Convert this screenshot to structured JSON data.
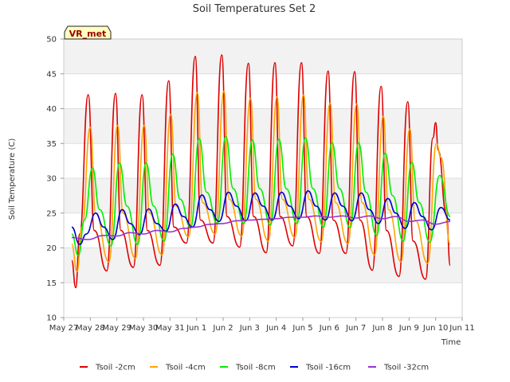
{
  "chart_data": {
    "type": "line",
    "title": "Soil Temperatures Set 2",
    "xlabel": "Time",
    "ylabel": "Soil Temperature (C)",
    "ylim": [
      10,
      50
    ],
    "yticks": [
      10,
      15,
      20,
      25,
      30,
      35,
      40,
      45,
      50
    ],
    "xlim": [
      0,
      15
    ],
    "xticks": [
      {
        "x": 0,
        "label": "May 27"
      },
      {
        "x": 1,
        "label": "May 28"
      },
      {
        "x": 2,
        "label": "May 29"
      },
      {
        "x": 3,
        "label": "May 30"
      },
      {
        "x": 4,
        "label": "May 31"
      },
      {
        "x": 5,
        "label": "Jun 1"
      },
      {
        "x": 6,
        "label": "Jun 2"
      },
      {
        "x": 7,
        "label": "Jun 3"
      },
      {
        "x": 8,
        "label": "Jun 4"
      },
      {
        "x": 9,
        "label": "Jun 5"
      },
      {
        "x": 10,
        "label": "Jun 6"
      },
      {
        "x": 11,
        "label": "Jun 7"
      },
      {
        "x": 12,
        "label": "Jun 8"
      },
      {
        "x": 13,
        "label": "Jun 9"
      },
      {
        "x": 14,
        "label": "Jun 10"
      },
      {
        "x": 15,
        "label": "Jun 11"
      }
    ],
    "grid": "horizontal bands",
    "legend": "bottom",
    "badge": "VR_met",
    "series": [
      {
        "name": "Tsoil -2cm",
        "color": "#dd0000",
        "x": [
          0.3,
          0.45,
          0.6,
          0.92,
          1.15,
          1.62,
          1.95,
          2.15,
          2.62,
          2.95,
          3.15,
          3.62,
          3.95,
          4.15,
          4.62,
          4.95,
          5.15,
          5.62,
          5.95,
          6.15,
          6.62,
          6.95,
          7.15,
          7.62,
          7.95,
          8.15,
          8.62,
          8.95,
          9.15,
          9.62,
          9.95,
          10.15,
          10.62,
          10.95,
          11.15,
          11.62,
          11.95,
          12.15,
          12.62,
          12.95,
          13.15,
          13.62,
          13.9,
          14.0,
          14.1,
          14.4,
          14.55
        ],
        "y": [
          18.2,
          14.3,
          22.0,
          42.0,
          22.5,
          16.7,
          42.2,
          22.5,
          17.2,
          42.0,
          22.5,
          17.5,
          44.0,
          23.0,
          20.7,
          47.5,
          24.0,
          20.7,
          47.7,
          24.5,
          20.1,
          46.5,
          24.5,
          19.3,
          46.6,
          24.5,
          20.3,
          46.6,
          24.5,
          19.2,
          45.4,
          24.0,
          19.2,
          45.3,
          24.0,
          16.8,
          43.2,
          22.5,
          15.9,
          41.0,
          21.0,
          15.5,
          35.8,
          38.0,
          34.0,
          25.0,
          17.5
        ]
      },
      {
        "name": "Tsoil -4cm",
        "color": "#ffa500",
        "x": [
          0.3,
          0.5,
          0.68,
          1.0,
          1.2,
          1.7,
          2.03,
          2.23,
          2.7,
          3.03,
          3.23,
          3.7,
          4.03,
          4.23,
          4.7,
          5.03,
          5.23,
          5.7,
          6.03,
          6.23,
          6.7,
          7.03,
          7.23,
          7.7,
          8.03,
          8.23,
          8.7,
          9.03,
          9.23,
          9.7,
          10.03,
          10.23,
          10.7,
          11.03,
          11.23,
          11.7,
          12.03,
          12.23,
          12.7,
          13.03,
          13.23,
          13.7,
          14.03,
          14.2,
          14.55
        ],
        "y": [
          20.5,
          16.6,
          23.0,
          37.3,
          25.0,
          18.0,
          37.6,
          25.0,
          18.5,
          37.6,
          25.0,
          19.0,
          39.2,
          26.0,
          21.6,
          42.3,
          26.5,
          22.0,
          42.5,
          27.0,
          21.7,
          41.5,
          27.0,
          21.0,
          41.7,
          27.0,
          21.5,
          42.0,
          27.0,
          20.9,
          40.8,
          26.5,
          20.6,
          40.7,
          26.5,
          19.0,
          38.9,
          25.5,
          18.0,
          37.1,
          24.0,
          17.8,
          35.0,
          33.0,
          20.5
        ]
      },
      {
        "name": "Tsoil -8cm",
        "color": "#00ee00",
        "x": [
          0.3,
          0.55,
          0.78,
          1.08,
          1.35,
          1.78,
          2.1,
          2.38,
          2.78,
          3.1,
          3.38,
          3.78,
          4.1,
          4.38,
          4.78,
          5.1,
          5.38,
          5.78,
          6.1,
          6.38,
          6.78,
          7.1,
          7.38,
          7.78,
          8.1,
          8.38,
          8.78,
          9.1,
          9.38,
          9.78,
          10.1,
          10.38,
          10.78,
          11.1,
          11.38,
          11.78,
          12.1,
          12.38,
          12.78,
          13.1,
          13.38,
          13.78,
          14.15,
          14.55
        ],
        "y": [
          22.0,
          18.9,
          24.0,
          31.5,
          25.5,
          20.3,
          32.2,
          26.0,
          20.5,
          32.2,
          26.0,
          21.0,
          33.5,
          27.0,
          22.9,
          35.7,
          28.0,
          23.5,
          36.0,
          28.5,
          23.5,
          35.5,
          28.5,
          23.3,
          35.6,
          28.5,
          23.5,
          35.8,
          28.5,
          23.0,
          35.1,
          28.5,
          22.9,
          35.1,
          28.0,
          21.8,
          33.6,
          27.5,
          21.0,
          32.3,
          26.5,
          20.8,
          30.4,
          24.5
        ]
      },
      {
        "name": "Tsoil -16cm",
        "color": "#0000cc",
        "x": [
          0.3,
          0.6,
          0.85,
          1.2,
          1.5,
          1.85,
          2.2,
          2.5,
          2.85,
          3.2,
          3.5,
          3.85,
          4.2,
          4.5,
          4.85,
          5.2,
          5.5,
          5.85,
          6.2,
          6.5,
          6.85,
          7.2,
          7.5,
          7.85,
          8.2,
          8.5,
          8.85,
          9.2,
          9.5,
          9.85,
          10.2,
          10.5,
          10.85,
          11.2,
          11.5,
          11.85,
          12.2,
          12.5,
          12.85,
          13.2,
          13.5,
          13.85,
          14.2,
          14.55
        ],
        "y": [
          23.0,
          20.5,
          22.0,
          25.0,
          23.0,
          21.2,
          25.5,
          23.5,
          21.9,
          25.6,
          23.5,
          22.4,
          26.3,
          24.5,
          23.0,
          27.6,
          25.5,
          23.8,
          28.0,
          26.0,
          23.9,
          27.9,
          26.0,
          24.0,
          28.0,
          26.0,
          24.2,
          28.2,
          26.0,
          24.0,
          27.9,
          26.0,
          23.9,
          27.9,
          25.5,
          23.5,
          27.1,
          25.0,
          22.8,
          26.5,
          24.5,
          22.6,
          25.8,
          24.0
        ]
      },
      {
        "name": "Tsoil -32cm",
        "color": "#9933cc",
        "x": [
          0.3,
          0.9,
          1.5,
          2.0,
          2.5,
          3.0,
          3.5,
          4.0,
          4.5,
          5.0,
          5.5,
          6.0,
          6.5,
          7.0,
          7.5,
          8.0,
          8.5,
          9.0,
          9.5,
          10.0,
          10.5,
          11.0,
          11.5,
          12.0,
          12.5,
          13.0,
          13.5,
          14.0,
          14.55
        ],
        "y": [
          21.5,
          21.2,
          21.8,
          21.7,
          22.2,
          22.0,
          22.5,
          22.3,
          22.8,
          23.0,
          23.4,
          23.5,
          23.9,
          24.0,
          24.1,
          24.2,
          24.4,
          24.4,
          24.6,
          24.4,
          24.6,
          24.3,
          24.6,
          24.2,
          24.5,
          23.8,
          24.0,
          23.4,
          23.8
        ]
      }
    ]
  }
}
